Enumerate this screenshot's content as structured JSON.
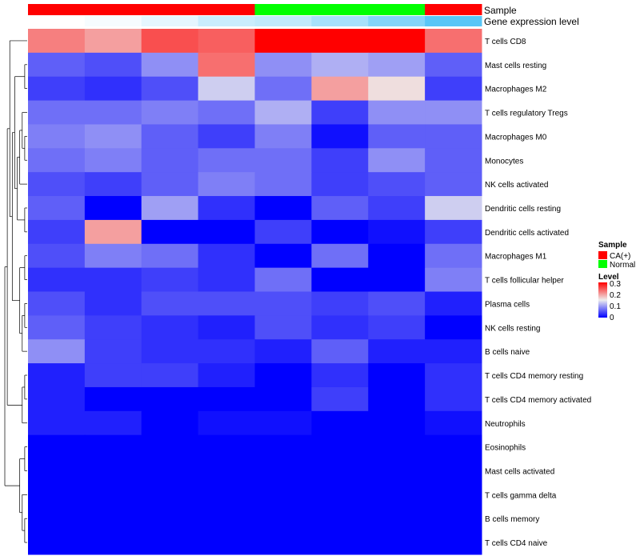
{
  "chart_data": {
    "type": "heatmap",
    "annotation_tracks": [
      {
        "name": "Sample",
        "values": [
          "CA(+)",
          "CA(+)",
          "CA(+)",
          "CA(+)",
          "Normal",
          "Normal",
          "Normal",
          "CA(+)"
        ]
      },
      {
        "name": "Gene expression level",
        "values": [
          0.0,
          0.05,
          0.15,
          0.3,
          0.35,
          0.5,
          0.7,
          0.95
        ]
      }
    ],
    "rows": [
      "T cells CD8",
      "Mast cells resting",
      "Macrophages M2",
      "T cells regulatory  Tregs",
      "Macrophages M0",
      "Monocytes",
      "NK cells activated",
      "Dendritic cells resting",
      "Dendritic cells activated",
      "Macrophages M1",
      "T cells follicular helper",
      "Plasma cells",
      "NK cells resting",
      "B cells naive",
      "T cells CD4 memory resting",
      "T cells CD4 memory activated",
      "Neutrophils",
      "Eosinophils",
      "Mast cells activated",
      "T cells gamma delta",
      "B cells memory",
      "T cells CD4 naive"
    ],
    "values": [
      [
        0.22,
        0.2,
        0.25,
        0.24,
        0.3,
        0.3,
        0.3,
        0.23
      ],
      [
        0.06,
        0.05,
        0.09,
        0.23,
        0.09,
        0.11,
        0.1,
        0.06
      ],
      [
        0.04,
        0.03,
        0.05,
        0.13,
        0.07,
        0.2,
        0.16,
        0.04
      ],
      [
        0.07,
        0.07,
        0.08,
        0.07,
        0.11,
        0.04,
        0.09,
        0.09
      ],
      [
        0.08,
        0.09,
        0.06,
        0.04,
        0.08,
        0.01,
        0.06,
        0.06
      ],
      [
        0.07,
        0.08,
        0.06,
        0.07,
        0.07,
        0.04,
        0.09,
        0.06
      ],
      [
        0.05,
        0.04,
        0.06,
        0.08,
        0.07,
        0.04,
        0.05,
        0.06
      ],
      [
        0.06,
        0.0,
        0.1,
        0.03,
        0.0,
        0.06,
        0.04,
        0.13
      ],
      [
        0.04,
        0.2,
        0.0,
        0.0,
        0.04,
        0.0,
        0.01,
        0.04
      ],
      [
        0.05,
        0.08,
        0.07,
        0.03,
        0.0,
        0.07,
        0.0,
        0.07
      ],
      [
        0.03,
        0.03,
        0.04,
        0.03,
        0.07,
        0.0,
        0.0,
        0.08
      ],
      [
        0.05,
        0.03,
        0.05,
        0.05,
        0.05,
        0.04,
        0.05,
        0.02
      ],
      [
        0.06,
        0.04,
        0.03,
        0.02,
        0.05,
        0.03,
        0.04,
        0.0
      ],
      [
        0.09,
        0.04,
        0.03,
        0.03,
        0.02,
        0.06,
        0.02,
        0.02
      ],
      [
        0.02,
        0.04,
        0.04,
        0.02,
        0.0,
        0.03,
        0.0,
        0.03
      ],
      [
        0.02,
        0.0,
        0.0,
        0.0,
        0.0,
        0.04,
        0.0,
        0.03
      ],
      [
        0.02,
        0.02,
        0.0,
        0.01,
        0.01,
        0.0,
        0.0,
        0.01
      ],
      [
        0.0,
        0.0,
        0.0,
        0.0,
        0.0,
        0.0,
        0.0,
        0.0
      ],
      [
        0.0,
        0.0,
        0.0,
        0.0,
        0.0,
        0.0,
        0.0,
        0.0
      ],
      [
        0.0,
        0.0,
        0.0,
        0.0,
        0.0,
        0.0,
        0.0,
        0.0
      ],
      [
        0.0,
        0.0,
        0.0,
        0.0,
        0.0,
        0.0,
        0.0,
        0.0
      ],
      [
        0.0,
        0.0,
        0.0,
        0.0,
        0.0,
        0.0,
        0.0,
        0.0
      ]
    ],
    "color_scale": {
      "min": 0,
      "max": 0.3,
      "colors": [
        "#0000ff",
        "#eeeeee",
        "#ff0000"
      ]
    },
    "annotation_colors": {
      "CA(+)": "#ff0000",
      "Normal": "#00ff00",
      "expression_low": "#ffffff",
      "expression_high": "#4fc3f7"
    },
    "legend": {
      "placement": "right",
      "sample_title": "Sample",
      "sample_items": [
        "CA(+)",
        "Normal"
      ],
      "level_title": "Level",
      "level_ticks": [
        "0.3",
        "0.2",
        "0.1",
        "0"
      ]
    },
    "dendrogram": "rows"
  }
}
